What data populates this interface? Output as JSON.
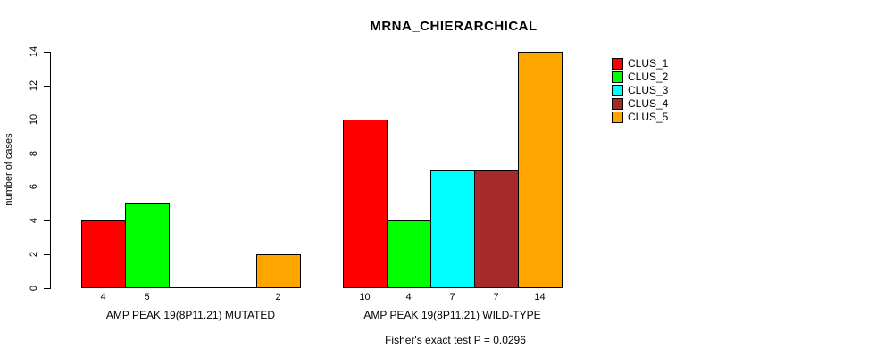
{
  "title": "MRNA_CHIERARCHICAL",
  "chart_data": {
    "type": "bar",
    "title": "MRNA_CHIERARCHICAL",
    "xlabel": "",
    "ylabel": "number of cases",
    "ylim": [
      0,
      14
    ],
    "yticks": [
      0,
      2,
      4,
      6,
      8,
      10,
      12,
      14
    ],
    "grid": false,
    "legend_position": "top-right",
    "legend_entries": [
      "CLUS_1",
      "CLUS_2",
      "CLUS_3",
      "CLUS_4",
      "CLUS_5"
    ],
    "colors": [
      "#ff0000",
      "#00ff00",
      "#00ffff",
      "#a52a2a",
      "#ffa500"
    ],
    "bar_border_color": "#000000",
    "groups": [
      {
        "label": "AMP PEAK 19(8P11.21) MUTATED",
        "values": [
          4,
          5,
          0,
          0,
          2
        ],
        "value_labels": [
          "4",
          "5",
          "",
          "",
          "2"
        ]
      },
      {
        "label": "AMP PEAK 19(8P11.21) WILD-TYPE",
        "values": [
          10,
          4,
          7,
          7,
          14
        ],
        "value_labels": [
          "10",
          "4",
          "7",
          "7",
          "14"
        ]
      }
    ],
    "annotation": "Fisher's exact test P = 0.0296"
  }
}
